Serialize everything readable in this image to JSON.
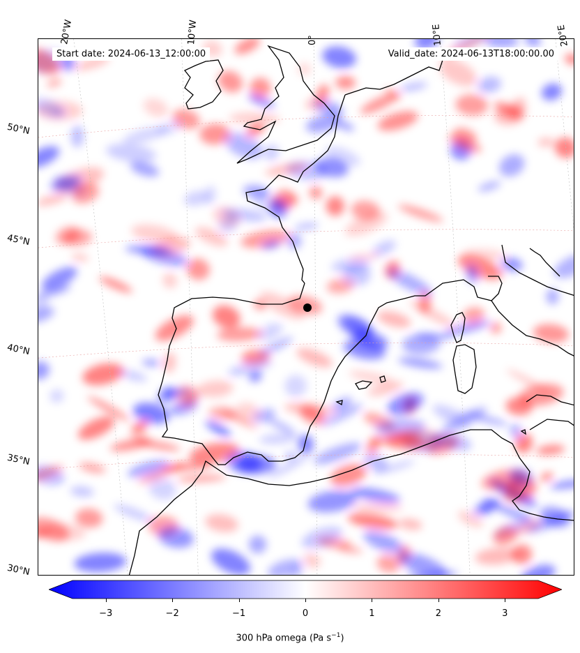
{
  "header": {
    "start_date": "Start date: 2024-06-13_12:00:00",
    "valid_date": "Valid_date: 2024-06-13T18:00:00.00"
  },
  "graticule": {
    "lon_labels": [
      "20°W",
      "10°W",
      "0°",
      "10°E",
      "20°E"
    ],
    "lat_labels": [
      "50°N",
      "45°N",
      "40°N",
      "35°N",
      "30°N"
    ]
  },
  "colorbar": {
    "label_main": "300 hPa omega (Pa s",
    "label_sup": "−1",
    "label_close": ")",
    "ticks": [
      "−3",
      "−2",
      "−1",
      "0",
      "1",
      "2",
      "3"
    ],
    "vmin": -3.5,
    "vmax": 3.5,
    "low_color": "#0000ff",
    "mid_color": "#ffffff",
    "high_color": "#ff0000",
    "extend": "both"
  },
  "map": {
    "projection": "conic",
    "extent_description": "Western Europe and North Africa",
    "coastline_color": "#000000",
    "field": "300 hPa omega"
  }
}
